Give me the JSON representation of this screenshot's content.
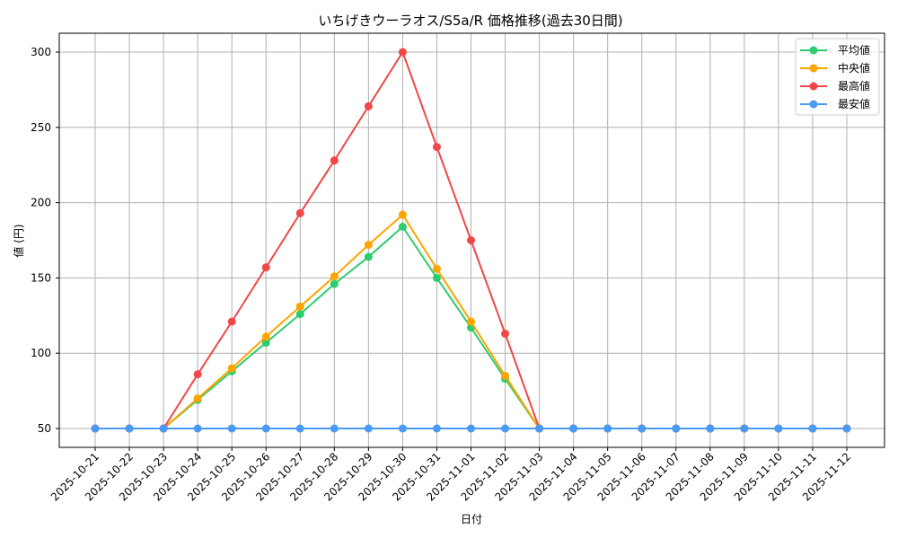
{
  "chart_data": {
    "type": "line",
    "title": "いちげきウーラオス/S5a/R 価格推移(過去30日間)",
    "xlabel": "日付",
    "ylabel": "値 (円)",
    "ylim": [
      37,
      313
    ],
    "yticks": [
      50,
      100,
      150,
      200,
      250,
      300
    ],
    "grid": true,
    "legend_position": "upper right",
    "x": [
      "2025-10-21",
      "2025-10-22",
      "2025-10-23",
      "2025-10-24",
      "2025-10-25",
      "2025-10-26",
      "2025-10-27",
      "2025-10-28",
      "2025-10-29",
      "2025-10-30",
      "2025-10-31",
      "2025-11-01",
      "2025-11-02",
      "2025-11-03",
      "2025-11-04",
      "2025-11-05",
      "2025-11-06",
      "2025-11-07",
      "2025-11-08",
      "2025-11-09",
      "2025-11-10",
      "2025-11-11",
      "2025-11-12"
    ],
    "series": [
      {
        "name": "平均値",
        "color": "#2ecc71",
        "values": [
          50,
          50,
          50,
          69,
          88,
          107,
          126,
          146,
          164,
          184,
          150,
          117,
          83,
          50,
          50,
          50,
          50,
          50,
          50,
          50,
          50,
          50,
          50
        ]
      },
      {
        "name": "中央値",
        "color": "#ffa500",
        "values": [
          50,
          50,
          50,
          70,
          90,
          111,
          131,
          151,
          172,
          192,
          156,
          121,
          85,
          50,
          50,
          50,
          50,
          50,
          50,
          50,
          50,
          50,
          50
        ]
      },
      {
        "name": "最高値",
        "color": "#f04848",
        "values": [
          50,
          50,
          50,
          86,
          121,
          157,
          193,
          228,
          264,
          300,
          237,
          175,
          113,
          50,
          50,
          50,
          50,
          50,
          50,
          50,
          50,
          50,
          50
        ]
      },
      {
        "name": "最安値",
        "color": "#4a9af5",
        "values": [
          50,
          50,
          50,
          50,
          50,
          50,
          50,
          50,
          50,
          50,
          50,
          50,
          50,
          50,
          50,
          50,
          50,
          50,
          50,
          50,
          50,
          50,
          50
        ]
      }
    ]
  }
}
